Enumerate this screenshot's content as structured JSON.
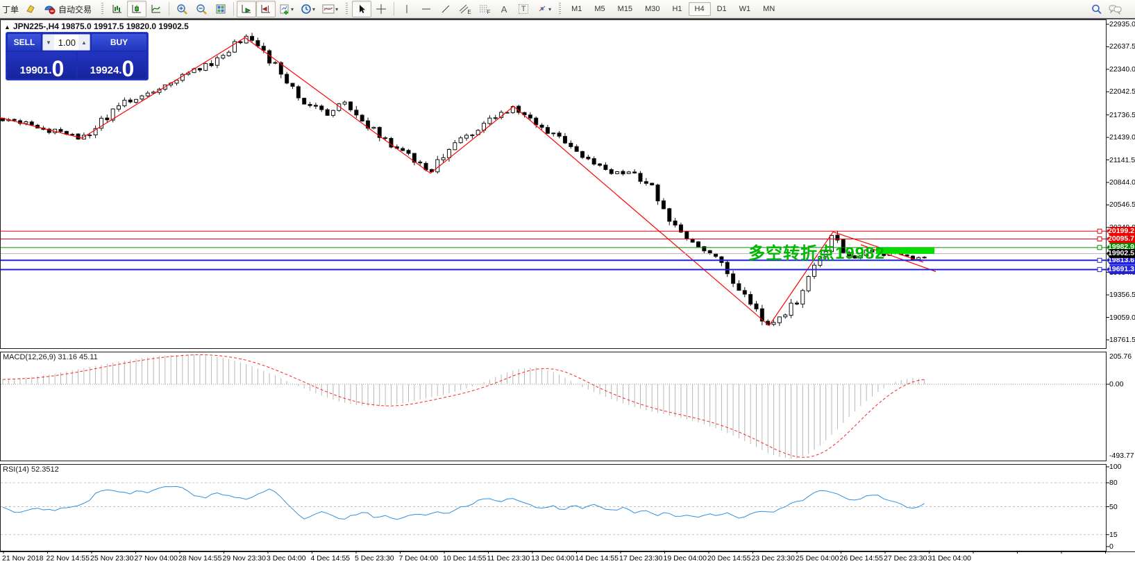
{
  "toolbar": {
    "orders_label": "丁单",
    "autotrading_label": "自动交易",
    "caret": "▾",
    "glyphs": {
      "text_tool": "A",
      "label_tool": "T",
      "channel_sub": "E",
      "fibo_sub": "F"
    },
    "timeframes": [
      "M1",
      "M5",
      "M15",
      "M30",
      "H1",
      "H4",
      "D1",
      "W1",
      "MN"
    ],
    "active_timeframe": "H4"
  },
  "title": {
    "collapse_icon": "▲",
    "text": "JPN225-,H4  19875.0 19917.5 19820.0 19902.5"
  },
  "trade_panel": {
    "sell_label": "SELL",
    "buy_label": "BUY",
    "volume": "1.00",
    "dot": ".",
    "sell_price_int": "19901",
    "sell_price_frac": "0",
    "buy_price_int": "19924",
    "buy_price_frac": "0"
  },
  "annotation": {
    "text": "多空转折点19982",
    "color": "#00b800"
  },
  "chart_data": [
    {
      "type": "candlestick",
      "symbol": "JPN225-",
      "period": "H4",
      "ohlc": {
        "open": 19875.0,
        "high": 19917.5,
        "low": 19820.0,
        "close": 19902.5
      },
      "y_range": [
        18761.5,
        22935.0
      ],
      "y_ticks": [
        "22935.0",
        "22637.5",
        "22340.0",
        "22042.5",
        "21736.5",
        "21439.0",
        "21141.5",
        "20844.0",
        "20546.5",
        "20249.0",
        "19654.0",
        "19356.5",
        "19059.0",
        "18761.5"
      ],
      "x_labels": [
        "21 Nov 2018",
        "22 Nov 14:55",
        "25 Nov 23:30",
        "27 Nov 04:00",
        "28 Nov 14:55",
        "29 Nov 23:30",
        "3 Dec 04:00",
        "4 Dec 14:55",
        "5 Dec 23:30",
        "7 Dec 04:00",
        "10 Dec 14:55",
        "11 Dec 23:30",
        "13 Dec 04:00",
        "14 Dec 14:55",
        "17 Dec 23:30",
        "19 Dec 04:00",
        "20 Dec 14:55",
        "23 Dec 23:30",
        "25 Dec 04:00",
        "26 Dec 14:55",
        "27 Dec 23:30",
        "31 Dec 04:00"
      ],
      "zigzag_color": "#ff0000",
      "zigzag": [
        [
          0,
          21700
        ],
        [
          118,
          21430
        ],
        [
          353,
          22760
        ],
        [
          620,
          20965
        ],
        [
          740,
          21850
        ],
        [
          1108,
          18950
        ],
        [
          1200,
          20190
        ],
        [
          1330,
          19790
        ]
      ],
      "trendline": [
        [
          1240,
          20020
        ],
        [
          1348,
          19665
        ]
      ],
      "price_path": [
        [
          0,
          21700
        ],
        [
          60,
          21560
        ],
        [
          118,
          21430
        ],
        [
          180,
          21900
        ],
        [
          240,
          22150
        ],
        [
          300,
          22400
        ],
        [
          353,
          22760
        ],
        [
          400,
          22380
        ],
        [
          430,
          21950
        ],
        [
          470,
          21750
        ],
        [
          500,
          21900
        ],
        [
          530,
          21620
        ],
        [
          560,
          21350
        ],
        [
          590,
          21200
        ],
        [
          620,
          20980
        ],
        [
          650,
          21300
        ],
        [
          680,
          21500
        ],
        [
          710,
          21700
        ],
        [
          740,
          21850
        ],
        [
          780,
          21600
        ],
        [
          820,
          21300
        ],
        [
          850,
          21100
        ],
        [
          880,
          20950
        ],
        [
          910,
          21000
        ],
        [
          940,
          20750
        ],
        [
          970,
          20300
        ],
        [
          1000,
          20050
        ],
        [
          1030,
          19900
        ],
        [
          1060,
          19500
        ],
        [
          1085,
          19200
        ],
        [
          1108,
          18950
        ],
        [
          1130,
          19100
        ],
        [
          1150,
          19300
        ],
        [
          1170,
          19700
        ],
        [
          1185,
          19900
        ],
        [
          1200,
          20150
        ],
        [
          1215,
          19950
        ],
        [
          1230,
          19850
        ],
        [
          1245,
          19950
        ],
        [
          1260,
          19900
        ],
        [
          1275,
          19880
        ],
        [
          1290,
          19920
        ],
        [
          1305,
          19850
        ],
        [
          1318,
          19780
        ],
        [
          1335,
          19900
        ]
      ],
      "hlines": [
        {
          "label": "20199.2",
          "color": "#ee0000",
          "width": 1
        },
        {
          "label": "20095.7",
          "color": "#ee0000",
          "width": 1
        },
        {
          "label": "19982.9",
          "color": "#009000",
          "width": 1
        },
        {
          "label": "19813.6",
          "color": "#2222dd",
          "width": 2
        },
        {
          "label": "19691.3",
          "color": "#2222dd",
          "width": 2
        }
      ],
      "current_price": {
        "label": "19902.5",
        "label_bg": "#000000",
        "line_color": "#b4b4b4"
      },
      "highlight_bar": {
        "x0": 1262,
        "x1": 1346,
        "price": 19940,
        "thickness": 9,
        "color": "#00df00"
      },
      "candle_up_fill": "#ffffff",
      "candle_down_fill": "#000000",
      "candle_stroke": "#111111"
    },
    {
      "type": "macd",
      "display": "MACD(12,26,9) 31.16 45.11",
      "params": "12,26,9",
      "macd_value": 31.16,
      "signal_value": 45.11,
      "y_labels": [
        "205.76",
        "0.00",
        "-493.77"
      ],
      "histogram_color": "#b6b6b6",
      "signal_color": "#ff2222",
      "points": [
        [
          0,
          30
        ],
        [
          40,
          45
        ],
        [
          80,
          70
        ],
        [
          120,
          105
        ],
        [
          160,
          140
        ],
        [
          200,
          170
        ],
        [
          240,
          190
        ],
        [
          280,
          196
        ],
        [
          320,
          175
        ],
        [
          350,
          140
        ],
        [
          380,
          88
        ],
        [
          410,
          30
        ],
        [
          430,
          -12
        ],
        [
          460,
          -70
        ],
        [
          490,
          -115
        ],
        [
          520,
          -140
        ],
        [
          550,
          -146
        ],
        [
          580,
          -125
        ],
        [
          610,
          -95
        ],
        [
          640,
          -68
        ],
        [
          670,
          -30
        ],
        [
          695,
          10
        ],
        [
          720,
          60
        ],
        [
          745,
          100
        ],
        [
          770,
          112
        ],
        [
          795,
          85
        ],
        [
          815,
          40
        ],
        [
          835,
          -10
        ],
        [
          860,
          -60
        ],
        [
          885,
          -105
        ],
        [
          910,
          -145
        ],
        [
          935,
          -175
        ],
        [
          960,
          -200
        ],
        [
          985,
          -225
        ],
        [
          1010,
          -255
        ],
        [
          1035,
          -295
        ],
        [
          1060,
          -345
        ],
        [
          1085,
          -400
        ],
        [
          1105,
          -450
        ],
        [
          1125,
          -480
        ],
        [
          1145,
          -492
        ],
        [
          1165,
          -455
        ],
        [
          1185,
          -390
        ],
        [
          1205,
          -300
        ],
        [
          1225,
          -205
        ],
        [
          1245,
          -120
        ],
        [
          1265,
          -50
        ],
        [
          1285,
          8
        ],
        [
          1300,
          30
        ],
        [
          1315,
          42
        ],
        [
          1330,
          31
        ]
      ]
    },
    {
      "type": "rsi",
      "display": "RSI(14) 52.3512",
      "params": "14",
      "value": 52.3512,
      "y_labels": [
        "100",
        "80",
        "50",
        "15",
        "0"
      ],
      "levels": [
        80,
        50,
        15
      ],
      "line_color": "#2f8fe0",
      "level_color": "#c0c0c0",
      "points": [
        [
          0,
          50
        ],
        [
          25,
          42
        ],
        [
          50,
          48
        ],
        [
          75,
          45
        ],
        [
          100,
          50
        ],
        [
          125,
          55
        ],
        [
          140,
          68
        ],
        [
          155,
          72
        ],
        [
          170,
          70
        ],
        [
          185,
          65
        ],
        [
          200,
          70
        ],
        [
          215,
          68
        ],
        [
          230,
          73
        ],
        [
          250,
          77
        ],
        [
          265,
          72
        ],
        [
          280,
          64
        ],
        [
          295,
          60
        ],
        [
          310,
          67
        ],
        [
          325,
          64
        ],
        [
          340,
          62
        ],
        [
          355,
          58
        ],
        [
          370,
          64
        ],
        [
          385,
          72
        ],
        [
          395,
          70
        ],
        [
          405,
          62
        ],
        [
          420,
          48
        ],
        [
          435,
          34
        ],
        [
          450,
          40
        ],
        [
          465,
          44
        ],
        [
          480,
          38
        ],
        [
          495,
          34
        ],
        [
          510,
          40
        ],
        [
          525,
          44
        ],
        [
          540,
          36
        ],
        [
          555,
          40
        ],
        [
          570,
          34
        ],
        [
          585,
          38
        ],
        [
          600,
          42
        ],
        [
          615,
          38
        ],
        [
          630,
          44
        ],
        [
          645,
          42
        ],
        [
          660,
          48
        ],
        [
          675,
          52
        ],
        [
          690,
          58
        ],
        [
          705,
          60
        ],
        [
          720,
          55
        ],
        [
          735,
          60
        ],
        [
          750,
          58
        ],
        [
          765,
          52
        ],
        [
          780,
          48
        ],
        [
          795,
          52
        ],
        [
          810,
          46
        ],
        [
          825,
          52
        ],
        [
          840,
          48
        ],
        [
          855,
          54
        ],
        [
          870,
          48
        ],
        [
          885,
          44
        ],
        [
          900,
          50
        ],
        [
          915,
          42
        ],
        [
          930,
          46
        ],
        [
          945,
          38
        ],
        [
          960,
          44
        ],
        [
          975,
          36
        ],
        [
          990,
          40
        ],
        [
          1005,
          36
        ],
        [
          1020,
          42
        ],
        [
          1035,
          38
        ],
        [
          1050,
          42
        ],
        [
          1065,
          36
        ],
        [
          1080,
          40
        ],
        [
          1095,
          44
        ],
        [
          1110,
          42
        ],
        [
          1125,
          48
        ],
        [
          1140,
          54
        ],
        [
          1155,
          58
        ],
        [
          1170,
          66
        ],
        [
          1185,
          70
        ],
        [
          1200,
          68
        ],
        [
          1215,
          62
        ],
        [
          1230,
          58
        ],
        [
          1245,
          62
        ],
        [
          1260,
          65
        ],
        [
          1275,
          60
        ],
        [
          1290,
          55
        ],
        [
          1305,
          50
        ],
        [
          1318,
          48
        ],
        [
          1330,
          53
        ]
      ]
    }
  ]
}
